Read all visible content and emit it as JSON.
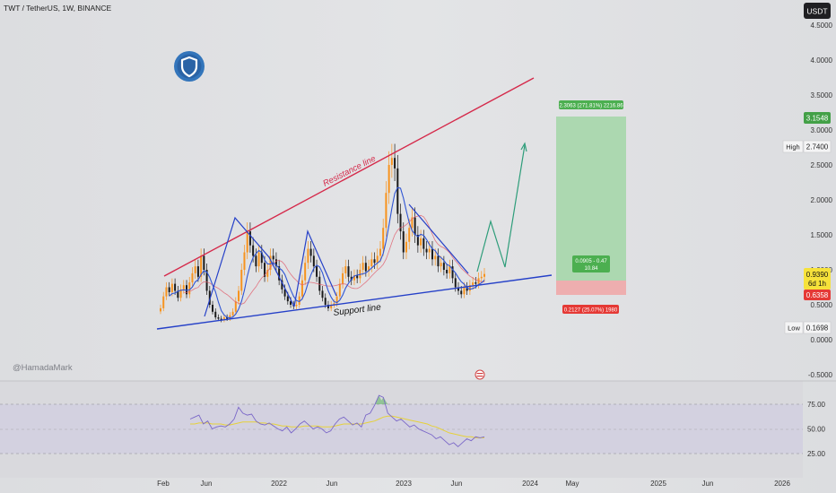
{
  "header": {
    "title": "TWT / TetherUS, 1W, BINANCE",
    "currency": "USDT"
  },
  "watermark": "@HamadaMark",
  "logo": {
    "name": "trust-wallet-shield-icon",
    "color": "#3375bb"
  },
  "colors": {
    "up_candle": "#f7931e",
    "down_candle": "#1a1a1a",
    "resistance": "#d5294a",
    "support": "#2540c8",
    "ma_fast": "#2f55d4",
    "ma_slow": "#e06070",
    "projection": "#2e9d7a",
    "target_zone": "#a6d9a8",
    "stop_zone": "#f0a8a8",
    "rsi": "#7a67c8",
    "rsi_ma": "#e6d13a"
  },
  "annotations": {
    "resistance_label": "Resistance line",
    "support_label": "Support line",
    "target_label": "2.3063 (271.81%) 2216.86",
    "entry_label_1": "0.0905 - 0.47",
    "entry_label_2": "10.84",
    "stop_label": "0.2127 (25.07%) 1980"
  },
  "price_badges": {
    "target": "3.1548",
    "high_label": "High",
    "high": "2.7400",
    "current": "0.9390",
    "countdown": "6d 1h",
    "stop": "0.6358",
    "low_label": "Low",
    "low": "0.1698"
  },
  "chart_data": {
    "type": "candlestick",
    "title": "TWT / TetherUS, 1W, BINANCE",
    "x_ticks": [
      "Feb",
      "Jun",
      "2022",
      "Jun",
      "2023",
      "Jun",
      "2024",
      "May",
      "2025",
      "Jun",
      "2026"
    ],
    "y_ticks": [
      "4.5000",
      "4.0000",
      "3.5000",
      "3.0000",
      "2.5000",
      "2.0000",
      "1.5000",
      "1.0000",
      "0.5000",
      "0.0000",
      "-0.5000"
    ],
    "ylim": [
      -0.5,
      4.5
    ],
    "closes": [
      0.45,
      0.62,
      0.75,
      0.68,
      0.8,
      0.7,
      0.6,
      0.72,
      0.78,
      0.65,
      0.82,
      0.95,
      1.05,
      0.9,
      1.2,
      1.0,
      0.7,
      0.5,
      0.4,
      0.32,
      0.3,
      0.28,
      0.32,
      0.3,
      0.35,
      0.4,
      0.55,
      0.7,
      1.0,
      1.25,
      1.55,
      1.35,
      1.2,
      1.05,
      1.25,
      1.1,
      0.9,
      1.0,
      1.2,
      1.15,
      1.05,
      0.85,
      0.72,
      0.62,
      0.55,
      0.5,
      0.48,
      0.5,
      0.62,
      0.85,
      1.1,
      1.3,
      1.2,
      1.05,
      0.9,
      0.7,
      0.6,
      0.5,
      0.45,
      0.5,
      0.52,
      0.62,
      0.8,
      0.95,
      1.05,
      0.9,
      0.85,
      0.92,
      0.88,
      1.0,
      1.1,
      0.98,
      1.05,
      1.15,
      1.1,
      1.2,
      1.3,
      1.6,
      2.1,
      2.5,
      2.6,
      2.45,
      1.8,
      1.55,
      1.25,
      1.4,
      1.6,
      1.75,
      1.5,
      1.35,
      1.45,
      1.3,
      1.25,
      1.3,
      1.15,
      1.2,
      1.05,
      1.1,
      1.0,
      0.95,
      1.05,
      0.88,
      0.75,
      0.7,
      0.65,
      0.75,
      0.7,
      0.78,
      0.82,
      0.8,
      0.88,
      0.9,
      0.94
    ],
    "ohlc_note": "weekly closes in USDT, read from the chart",
    "overlays": [
      "resistance line",
      "support line",
      "moving averages",
      "projected path",
      "long position"
    ],
    "rsi": {
      "y_ticks": [
        "75.00",
        "50.00",
        "25.00"
      ],
      "ylim": [
        15,
        90
      ],
      "values": [
        60,
        62,
        64,
        55,
        58,
        50,
        52,
        53,
        52,
        55,
        60,
        72,
        66,
        64,
        65,
        58,
        55,
        54,
        56,
        53,
        50,
        48,
        52,
        46,
        50,
        55,
        58,
        54,
        50,
        52,
        50,
        46,
        48,
        55,
        60,
        62,
        58,
        54,
        56,
        52,
        64,
        66,
        74,
        84,
        82,
        66,
        62,
        58,
        60,
        56,
        52,
        54,
        50,
        48,
        46,
        44,
        40,
        42,
        38,
        34,
        36,
        32,
        36,
        40,
        38,
        42,
        41,
        42
      ],
      "ma": [
        55,
        55,
        56,
        56,
        56,
        55,
        55,
        55,
        54,
        54,
        55,
        56,
        57,
        57,
        57,
        57,
        56,
        56,
        55,
        55,
        54,
        53,
        53,
        52,
        52,
        52,
        53,
        53,
        53,
        53,
        52,
        52,
        52,
        53,
        54,
        55,
        55,
        55,
        55,
        55,
        56,
        57,
        58,
        60,
        62,
        63,
        63,
        62,
        61,
        60,
        59,
        58,
        57,
        56,
        55,
        53,
        52,
        50,
        48,
        46,
        45,
        44,
        43,
        42,
        42,
        41,
        41,
        41
      ]
    }
  }
}
